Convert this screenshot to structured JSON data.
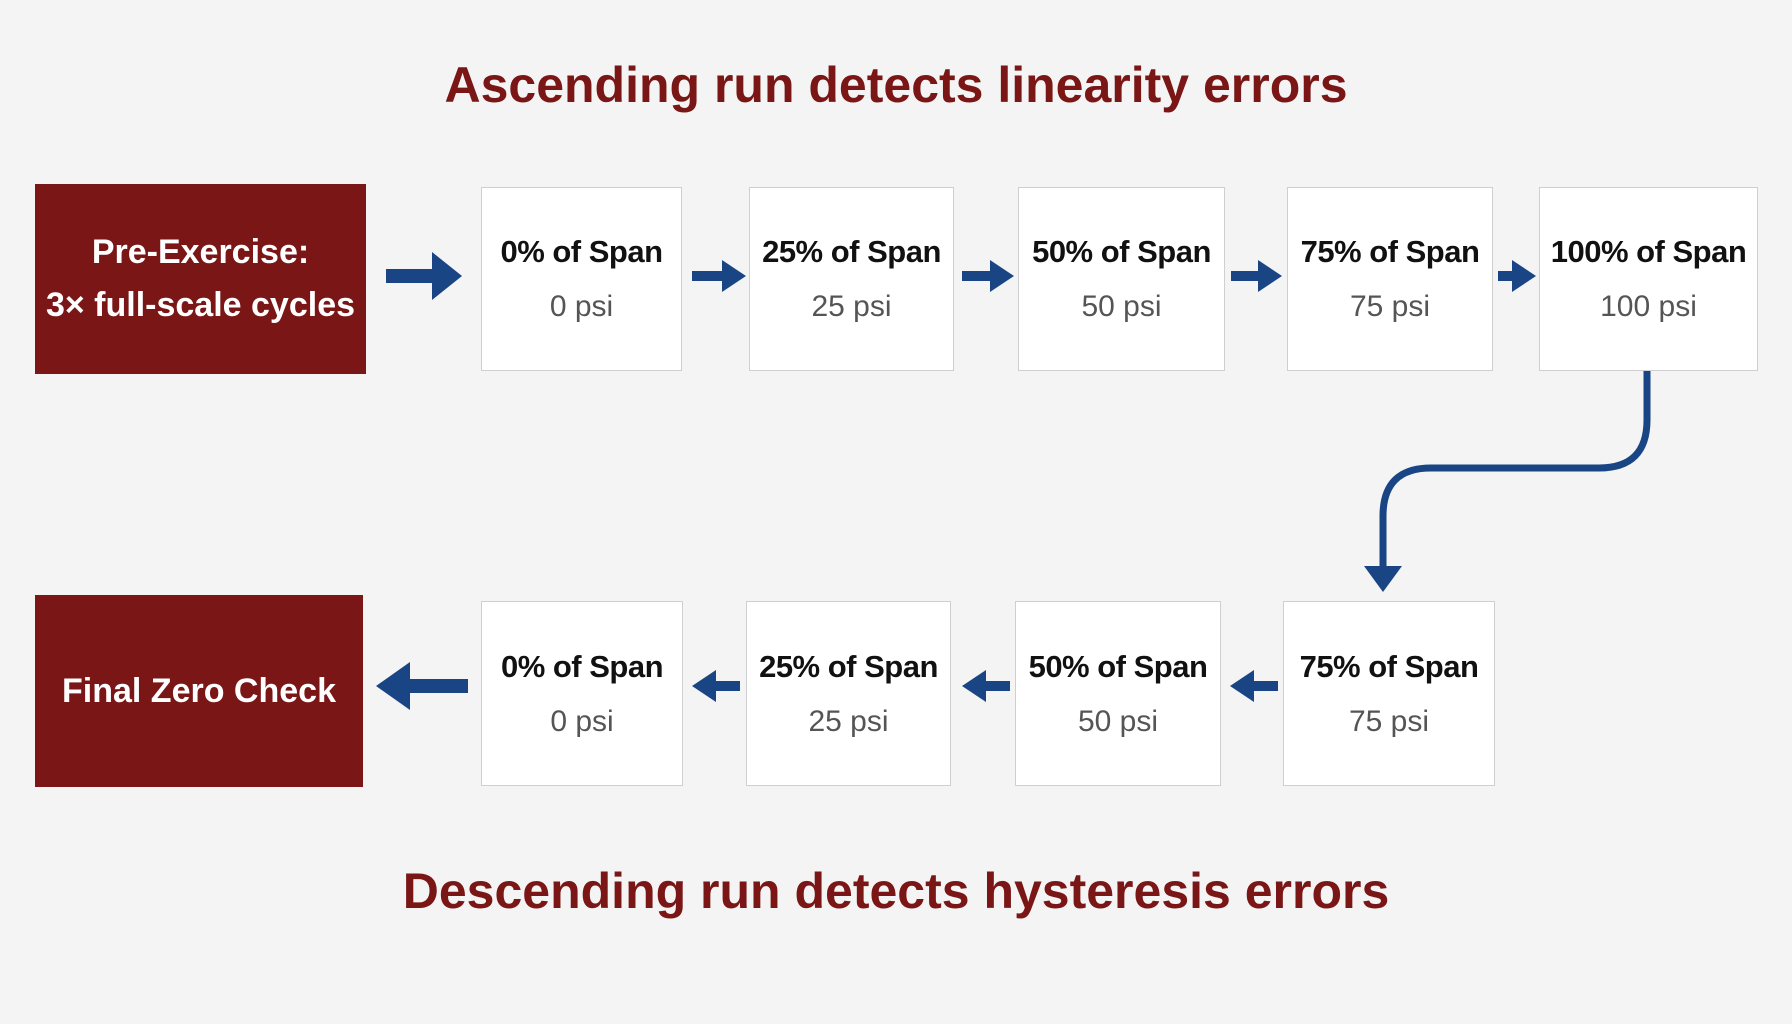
{
  "top_title": "Ascending run detects linearity errors",
  "start": {
    "line1": "Pre-Exercise:",
    "line2": "3× full-scale cycles"
  },
  "ascending": [
    {
      "label": "0% of Span",
      "value": "0 psi"
    },
    {
      "label": "25% of Span",
      "value": "25 psi"
    },
    {
      "label": "50% of Span",
      "value": "50 psi"
    },
    {
      "label": "75% of Span",
      "value": "75 psi"
    },
    {
      "label": "100% of Span",
      "value": "100 psi"
    }
  ],
  "descending": [
    {
      "label": "0% of Span",
      "value": "0 psi"
    },
    {
      "label": "25% of Span",
      "value": "25 psi"
    },
    {
      "label": "50% of Span",
      "value": "50 psi"
    },
    {
      "label": "75% of Span",
      "value": "75 psi"
    }
  ],
  "end": "Final Zero Check",
  "bottom_title": "Descending run detects hysteresis errors"
}
